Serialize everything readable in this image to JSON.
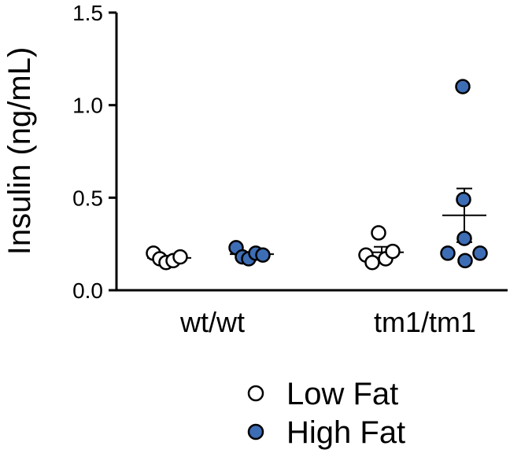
{
  "chart_data": {
    "type": "scatter",
    "title": "",
    "xlabel": "",
    "ylabel": "Insulin (ng/mL)",
    "ylim": [
      0,
      1.5
    ],
    "yticks": [
      "0.0",
      "0.5",
      "1.0",
      "1.5"
    ],
    "ytick_values": [
      0,
      0.5,
      1.0,
      1.5
    ],
    "categories": [
      "wt/wt",
      "tm1/tm1"
    ],
    "series": [
      {
        "name": "Low Fat",
        "fill": "#ffffff",
        "groups": [
          {
            "category": "wt/wt",
            "values": [
              0.2,
              0.17,
              0.15,
              0.16,
              0.18
            ],
            "mean": 0.175,
            "sem": 0.01
          },
          {
            "category": "tm1/tm1",
            "values": [
              0.19,
              0.15,
              0.31,
              0.17,
              0.21
            ],
            "mean": 0.205,
            "sem": 0.03
          }
        ]
      },
      {
        "name": "High Fat",
        "fill": "#3d6db5",
        "groups": [
          {
            "category": "wt/wt",
            "values": [
              0.23,
              0.18,
              0.17,
              0.2,
              0.19
            ],
            "mean": 0.195,
            "sem": 0.01
          },
          {
            "category": "tm1/tm1",
            "values": [
              0.2,
              1.1,
              0.49,
              0.28,
              0.16,
              0.2
            ],
            "mean": 0.405,
            "sem": 0.145
          }
        ]
      }
    ],
    "legend": {
      "position": "bottom",
      "entries": [
        "Low Fat",
        "High Fat"
      ]
    }
  },
  "colors": {
    "high_fat": "#3d6db5",
    "low_fat": "#ffffff",
    "stroke": "#000000"
  }
}
